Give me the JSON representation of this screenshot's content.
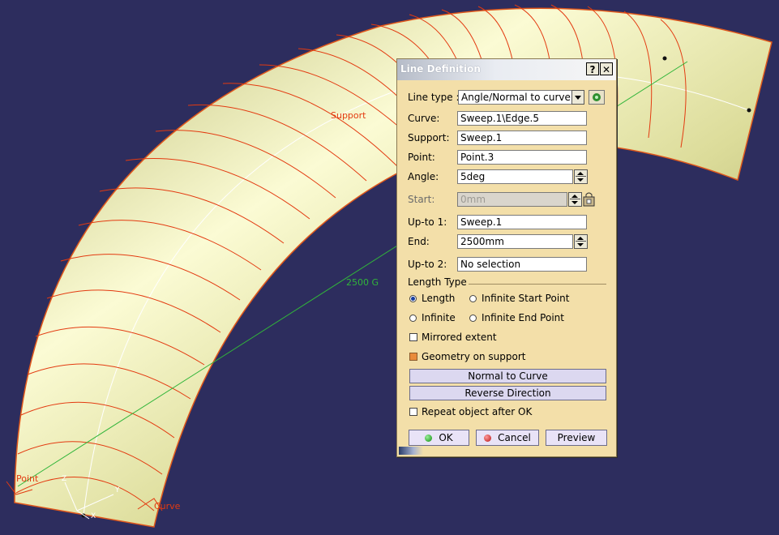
{
  "viewport": {
    "labels": {
      "support": "Support",
      "length": "2500 G",
      "point": "Point",
      "curve": "Curve",
      "axis_z": "Z",
      "axis_y": "Y",
      "axis_x": "X"
    },
    "colors": {
      "background": "#2d2d5e",
      "surface": "#e6e6a8",
      "edges": "#e33a10",
      "guide": "#ffffff",
      "line": "#31b53a"
    }
  },
  "dialog": {
    "title": "Line Definition",
    "help_button": "?",
    "close_button": "✕",
    "line_type_label": "Line type :",
    "line_type_value": "Angle/Normal to curve",
    "curve_label": "Curve:",
    "curve_value": "Sweep.1\\Edge.5",
    "support_label": "Support:",
    "support_value": "Sweep.1",
    "point_label": "Point:",
    "point_value": "Point.3",
    "angle_label": "Angle:",
    "angle_value": "5deg",
    "start_label": "Start:",
    "start_value": "0mm",
    "upto1_label": "Up-to 1:",
    "upto1_value": "Sweep.1",
    "end_label": "End:",
    "end_value": "2500mm",
    "upto2_label": "Up-to 2:",
    "upto2_value": "No selection",
    "length_type_label": "Length Type",
    "radio_length": "Length",
    "radio_infinite_start": "Infinite Start Point",
    "radio_infinite": "Infinite",
    "radio_infinite_end": "Infinite End Point",
    "mirrored_extent": "Mirrored extent",
    "geometry_on_support": "Geometry on support",
    "normal_to_curve": "Normal to Curve",
    "reverse_direction": "Reverse Direction",
    "repeat_object": "Repeat object after OK",
    "ok": "OK",
    "cancel": "Cancel",
    "preview": "Preview"
  }
}
